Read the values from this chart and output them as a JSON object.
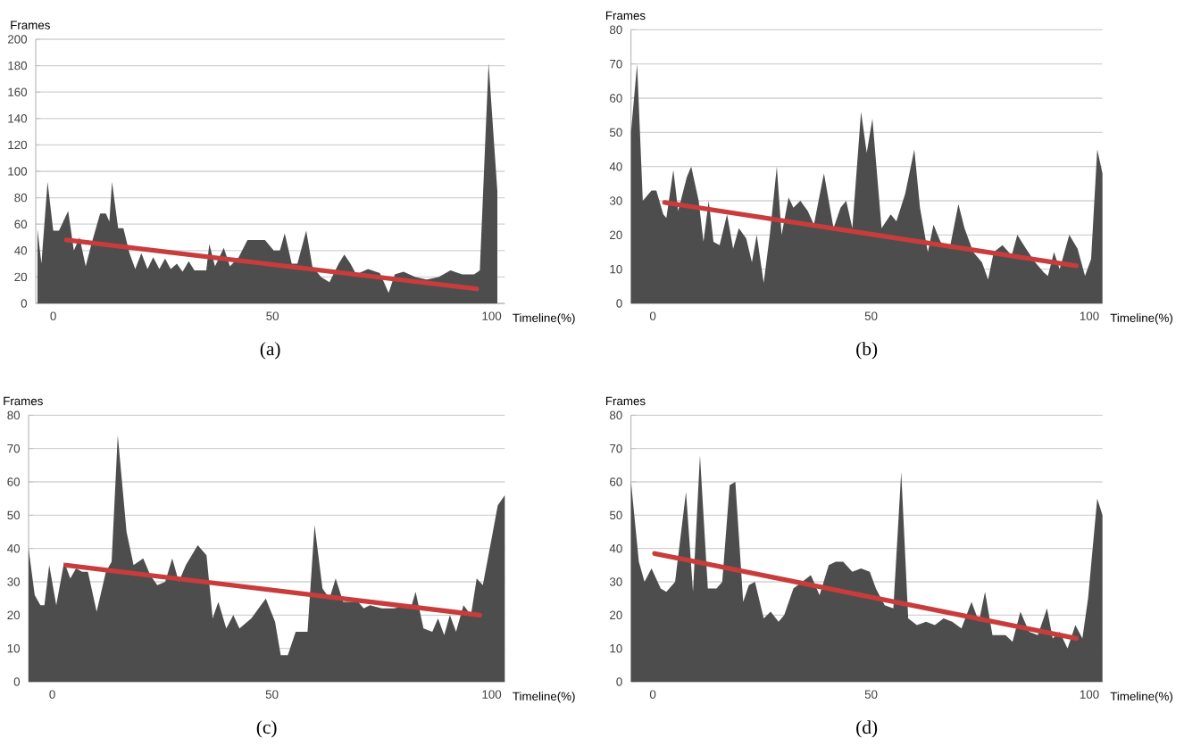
{
  "chart_data": [
    {
      "type": "area",
      "title": "(a)",
      "xlabel": "Timeline(%)",
      "ylabel": "Frames",
      "xlim": [
        -4,
        103
      ],
      "ylim": [
        0,
        200
      ],
      "xticks": [
        0,
        50,
        100
      ],
      "yticks": [
        0,
        20,
        40,
        60,
        80,
        100,
        120,
        140,
        160,
        180,
        200
      ],
      "grid": "y",
      "series": [
        {
          "type": "area",
          "color": "#4d4d4d",
          "x": [
            -3.6,
            -2.7,
            -1.3,
            0,
            1.3,
            3.4,
            4.7,
            6,
            7.4,
            8.7,
            10.7,
            12,
            12.8,
            13.4,
            14.8,
            16,
            17.4,
            18.7,
            20.1,
            21.5,
            22.8,
            24.2,
            25.5,
            26.8,
            28.2,
            29.5,
            30.9,
            32.2,
            34.9,
            35.6,
            36.9,
            38.9,
            40.3,
            42.3,
            44.3,
            46.3,
            48.3,
            50.3,
            51.7,
            52.8,
            54.4,
            55.7,
            57.7,
            59.1,
            61.1,
            63,
            65.1,
            66.4,
            67.8,
            69.1,
            71.8,
            74.5,
            76.5,
            77.9,
            79.9,
            82.6,
            85.2,
            87.9,
            90.6,
            93.3,
            96,
            97.3,
            99.3,
            101.3
          ],
          "values": [
            56,
            30,
            92,
            55,
            55,
            70,
            40,
            50,
            28,
            45,
            68,
            68,
            62,
            92,
            57,
            57,
            38,
            26,
            38,
            26,
            35,
            26,
            34,
            26,
            30,
            24,
            32,
            25,
            25,
            45,
            28,
            42,
            28,
            35,
            48,
            48,
            48,
            40,
            40,
            53,
            30,
            30,
            55,
            28,
            20,
            16,
            30,
            37,
            30,
            22,
            26,
            23,
            8,
            22,
            24,
            20,
            18,
            20,
            25,
            22,
            22,
            25,
            182,
            85
          ]
        },
        {
          "type": "line",
          "color": "#c83c3c",
          "x": [
            3,
            96.6
          ],
          "values": [
            48,
            11
          ]
        }
      ]
    },
    {
      "type": "area",
      "title": "(b)",
      "xlabel": "Timeline(%)",
      "ylabel": "Frames",
      "xlim": [
        -5,
        103
      ],
      "ylim": [
        0,
        80
      ],
      "xticks": [
        0,
        50,
        100
      ],
      "yticks": [
        0,
        10,
        20,
        30,
        40,
        50,
        60,
        70,
        80
      ],
      "grid": "y",
      "series": [
        {
          "type": "area",
          "color": "#4d4d4d",
          "x": [
            -5,
            -3.6,
            -2.3,
            -0.3,
            0.8,
            2.4,
            3.1,
            4.7,
            5.8,
            7.8,
            8.8,
            10.5,
            11.6,
            12.8,
            13.9,
            15.3,
            17,
            18.4,
            19.7,
            21.4,
            22.7,
            23.8,
            25.4,
            26.8,
            28.4,
            29.5,
            31.1,
            32.2,
            33.8,
            35.5,
            36.9,
            39.2,
            41.4,
            43,
            44.3,
            45.7,
            47.7,
            49,
            50.3,
            52.4,
            54.5,
            55.8,
            57.8,
            59.9,
            61.2,
            63,
            64.3,
            65.9,
            68,
            70,
            71.4,
            73.4,
            75.4,
            76.8,
            78.1,
            80.1,
            82.2,
            83.5,
            85.5,
            87.6,
            89.6,
            90.5,
            91.9,
            93.2,
            95.4,
            97.3,
            99,
            100.4,
            101.8,
            103
          ],
          "values": [
            50,
            70,
            30,
            33,
            33,
            26,
            25,
            39,
            27,
            37,
            40,
            30,
            18,
            30,
            18,
            17,
            26,
            16,
            22,
            19,
            12,
            20,
            6,
            20,
            40,
            20,
            31,
            28,
            30,
            27,
            23,
            38,
            22,
            28,
            30,
            22,
            56,
            44,
            54,
            22,
            26,
            24,
            32,
            45,
            28,
            15,
            23,
            18,
            16,
            29,
            22,
            15,
            12,
            7,
            15,
            17,
            14,
            20,
            16,
            12,
            9,
            8,
            15,
            10,
            20,
            16,
            8,
            13,
            45,
            38
          ]
        },
        {
          "type": "line",
          "color": "#c83c3c",
          "x": [
            2.7,
            97
          ],
          "values": [
            29.5,
            11
          ]
        }
      ]
    },
    {
      "type": "area",
      "title": "(c)",
      "xlabel": "Timeline(%)",
      "ylabel": "Frames",
      "xlim": [
        -5.4,
        103
      ],
      "ylim": [
        0,
        80
      ],
      "xticks": [
        0,
        50,
        100
      ],
      "yticks": [
        0,
        10,
        20,
        30,
        40,
        50,
        60,
        70,
        80
      ],
      "grid": "y",
      "series": [
        {
          "type": "area",
          "color": "#4d4d4d",
          "x": [
            -5.4,
            -4,
            -2.7,
            -1.8,
            -0.7,
            0.9,
            2.7,
            4.1,
            5.4,
            6.8,
            8.1,
            10.1,
            12.2,
            13.5,
            14.9,
            16.9,
            18.5,
            20.7,
            22.3,
            23.9,
            25.7,
            27.3,
            28.8,
            30.4,
            33.1,
            35.1,
            36.5,
            37.8,
            39.6,
            41.2,
            42.6,
            45.3,
            48.6,
            50.7,
            52,
            53.6,
            55.4,
            58.1,
            59.7,
            61.5,
            63.1,
            64.5,
            66.2,
            69.6,
            70.9,
            72.3,
            75,
            77.7,
            81.8,
            82.7,
            84.5,
            86.5,
            87.8,
            89.2,
            90.5,
            91.9,
            93.6,
            95.3,
            96.6,
            98,
            100,
            101.4,
            103
          ],
          "values": [
            40,
            26,
            23,
            23,
            35,
            23,
            36,
            31,
            34,
            33,
            33,
            21,
            33,
            36,
            74,
            45,
            35,
            37,
            32,
            29,
            30,
            37,
            30,
            35,
            41,
            38,
            19,
            24,
            16,
            20,
            16,
            19,
            25,
            18,
            8,
            8,
            15,
            15,
            47,
            28,
            25,
            31,
            24,
            24,
            22,
            23,
            22,
            22,
            23,
            27,
            16,
            15,
            19,
            14,
            20,
            15,
            23,
            20,
            31,
            29,
            43,
            53,
            56
          ]
        },
        {
          "type": "line",
          "color": "#c83c3c",
          "x": [
            3.1,
            97.3
          ],
          "values": [
            35,
            20
          ]
        }
      ]
    },
    {
      "type": "area",
      "title": "(d)",
      "xlabel": "Timeline(%)",
      "ylabel": "Frames",
      "xlim": [
        -5,
        103
      ],
      "ylim": [
        0,
        80
      ],
      "xticks": [
        0,
        50,
        100
      ],
      "yticks": [
        0,
        10,
        20,
        30,
        40,
        50,
        60,
        70,
        80
      ],
      "grid": "y",
      "series": [
        {
          "type": "area",
          "color": "#4d4d4d",
          "x": [
            -5,
            -3.2,
            -1.9,
            -0.3,
            1.8,
            3.1,
            5.1,
            7.6,
            9.2,
            10.8,
            12.6,
            14.6,
            15.9,
            17.6,
            18.9,
            20.7,
            22,
            23.4,
            25.4,
            27,
            28.8,
            30.1,
            32.2,
            34.2,
            36.2,
            38.2,
            40.3,
            41.9,
            43.6,
            45.7,
            47.7,
            49.7,
            51.1,
            53.1,
            55.1,
            56.9,
            58.5,
            60.5,
            62.6,
            64.6,
            66.6,
            68.6,
            70.7,
            73,
            74.7,
            76.1,
            77.8,
            80.8,
            82.4,
            84.2,
            86.2,
            88.2,
            90.3,
            91.6,
            93.2,
            95,
            96.8,
            98.4,
            99.7,
            101.8,
            103
          ],
          "values": [
            60,
            36,
            30,
            34,
            28,
            27,
            30,
            57,
            27,
            68,
            28,
            28,
            30,
            59,
            60,
            24,
            29,
            30,
            19,
            21,
            18,
            20,
            28,
            30,
            32,
            26,
            35,
            36,
            36,
            33,
            34,
            33,
            28,
            23,
            22,
            63,
            19,
            17,
            18,
            17,
            19,
            18,
            16,
            24,
            18,
            27,
            14,
            14,
            12,
            21,
            15,
            14,
            22,
            13,
            15,
            10,
            17,
            13,
            25,
            55,
            50
          ]
        },
        {
          "type": "line",
          "color": "#c83c3c",
          "x": [
            0.4,
            97
          ],
          "values": [
            38.5,
            13
          ]
        }
      ]
    }
  ]
}
